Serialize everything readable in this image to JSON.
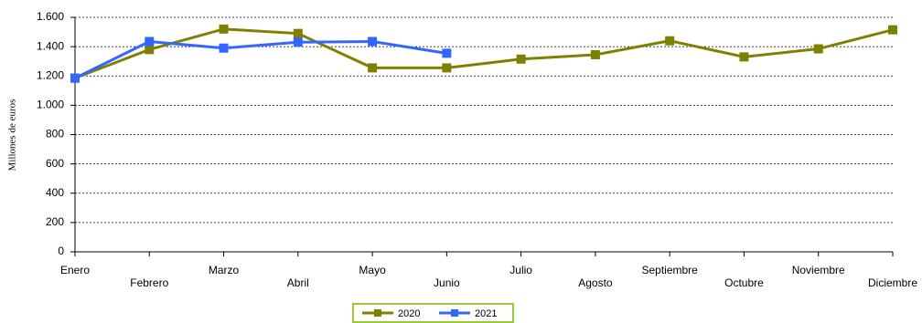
{
  "chart_data": {
    "type": "line",
    "y_label": "Millones de euros",
    "categories": [
      "Enero",
      "Febrero",
      "Marzo",
      "Abril",
      "Mayo",
      "Junio",
      "Julio",
      "Agosto",
      "Septiembre",
      "Octubre",
      "Noviembre",
      "Diciembre"
    ],
    "series": [
      {
        "name": "2020",
        "color": "#808000",
        "values": [
          1185,
          1380,
          1520,
          1490,
          1255,
          1255,
          1315,
          1345,
          1440,
          1330,
          1385,
          1515
        ]
      },
      {
        "name": "2021",
        "color": "#3366ff",
        "values": [
          1185,
          1435,
          1390,
          1430,
          1435,
          1355,
          null,
          null,
          null,
          null,
          null,
          null
        ]
      }
    ],
    "ylim": [
      0,
      1600
    ],
    "yticks": [
      0,
      200,
      400,
      600,
      800,
      {
        "value": 1000,
        "label": "1.000"
      },
      {
        "value": 1200,
        "label": "1.200"
      },
      {
        "value": 1400,
        "label": "1.400"
      },
      {
        "value": 1600,
        "label": "1.600"
      }
    ],
    "grid": true,
    "legend": "bottom"
  }
}
